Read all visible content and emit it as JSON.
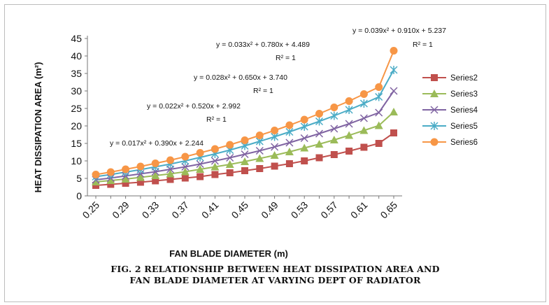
{
  "chart_data": {
    "type": "line",
    "title": "",
    "xlabel": "FAN BLADE DIAMETER  (m)",
    "ylabel": "HEAT DISSIPATION AREA  (m²)",
    "ylim": [
      0,
      45
    ],
    "yticks": [
      0,
      5,
      10,
      15,
      20,
      25,
      30,
      35,
      40,
      45
    ],
    "x": [
      0.25,
      0.27,
      0.29,
      0.31,
      0.33,
      0.35,
      0.37,
      0.39,
      0.41,
      0.43,
      0.45,
      0.47,
      0.49,
      0.51,
      0.53,
      0.55,
      0.57,
      0.59,
      0.61,
      0.63,
      0.65
    ],
    "xtick_labels": [
      "0.25",
      "0.29",
      "0.33",
      "0.37",
      "0.41",
      "0.45",
      "0.49",
      "0.53",
      "0.57",
      "0.61",
      "0.65"
    ],
    "grid": false,
    "legend": "right",
    "series": [
      {
        "name": "Series2",
        "color": "#c0504d",
        "marker": "square",
        "values": [
          3.0,
          3.3,
          3.6,
          3.9,
          4.3,
          4.7,
          5.1,
          5.5,
          6.1,
          6.6,
          7.2,
          7.8,
          8.5,
          9.2,
          10.0,
          10.9,
          11.8,
          12.8,
          13.9,
          15.0,
          18.0
        ]
      },
      {
        "name": "Series3",
        "color": "#9bbb59",
        "marker": "triangle",
        "values": [
          4.0,
          4.4,
          4.8,
          5.3,
          5.8,
          6.3,
          6.9,
          7.6,
          8.3,
          9.0,
          9.8,
          10.7,
          11.6,
          12.6,
          13.7,
          14.8,
          16.0,
          17.3,
          18.7,
          20.1,
          24.0
        ]
      },
      {
        "name": "Series4",
        "color": "#8064a2",
        "marker": "x",
        "values": [
          4.6,
          5.1,
          5.7,
          6.3,
          6.9,
          7.6,
          8.3,
          9.1,
          10.0,
          10.9,
          11.9,
          12.9,
          14.0,
          15.2,
          16.5,
          17.8,
          19.2,
          20.6,
          22.2,
          23.8,
          30.0
        ]
      },
      {
        "name": "Series5",
        "color": "#4bacc6",
        "marker": "star",
        "values": [
          5.5,
          6.1,
          6.8,
          7.5,
          8.3,
          9.1,
          10.0,
          11.0,
          12.0,
          13.1,
          14.3,
          15.6,
          16.9,
          18.3,
          19.8,
          21.3,
          22.9,
          24.6,
          26.4,
          28.3,
          36.0
        ]
      },
      {
        "name": "Series6",
        "color": "#f79646",
        "marker": "circle",
        "values": [
          6.1,
          6.8,
          7.6,
          8.4,
          9.3,
          10.2,
          11.2,
          12.3,
          13.4,
          14.6,
          15.9,
          17.3,
          18.7,
          20.2,
          21.8,
          23.5,
          25.3,
          27.1,
          29.1,
          31.1,
          41.5
        ]
      }
    ],
    "annotations": [
      {
        "text": "y = 0.039x² + 0.910x + 5.237"
      },
      {
        "text": "R² = 1"
      },
      {
        "text": "y = 0.033x² + 0.780x + 4.489"
      },
      {
        "text": "R² = 1"
      },
      {
        "text": "y = 0.028x² + 0.650x + 3.740"
      },
      {
        "text": "R² = 1"
      },
      {
        "text": "y = 0.022x² + 0.520x + 2.992"
      },
      {
        "text": "R² = 1"
      },
      {
        "text": "y = 0.017x² + 0.390x + 2.244"
      }
    ]
  },
  "caption": {
    "line1": "FIG. 2 RELATIONSHIP BETWEEN HEAT DISSIPATION AREA AND",
    "line2": "FAN BLADE DIAMETER AT VARYING DEPT OF RADIATOR"
  }
}
